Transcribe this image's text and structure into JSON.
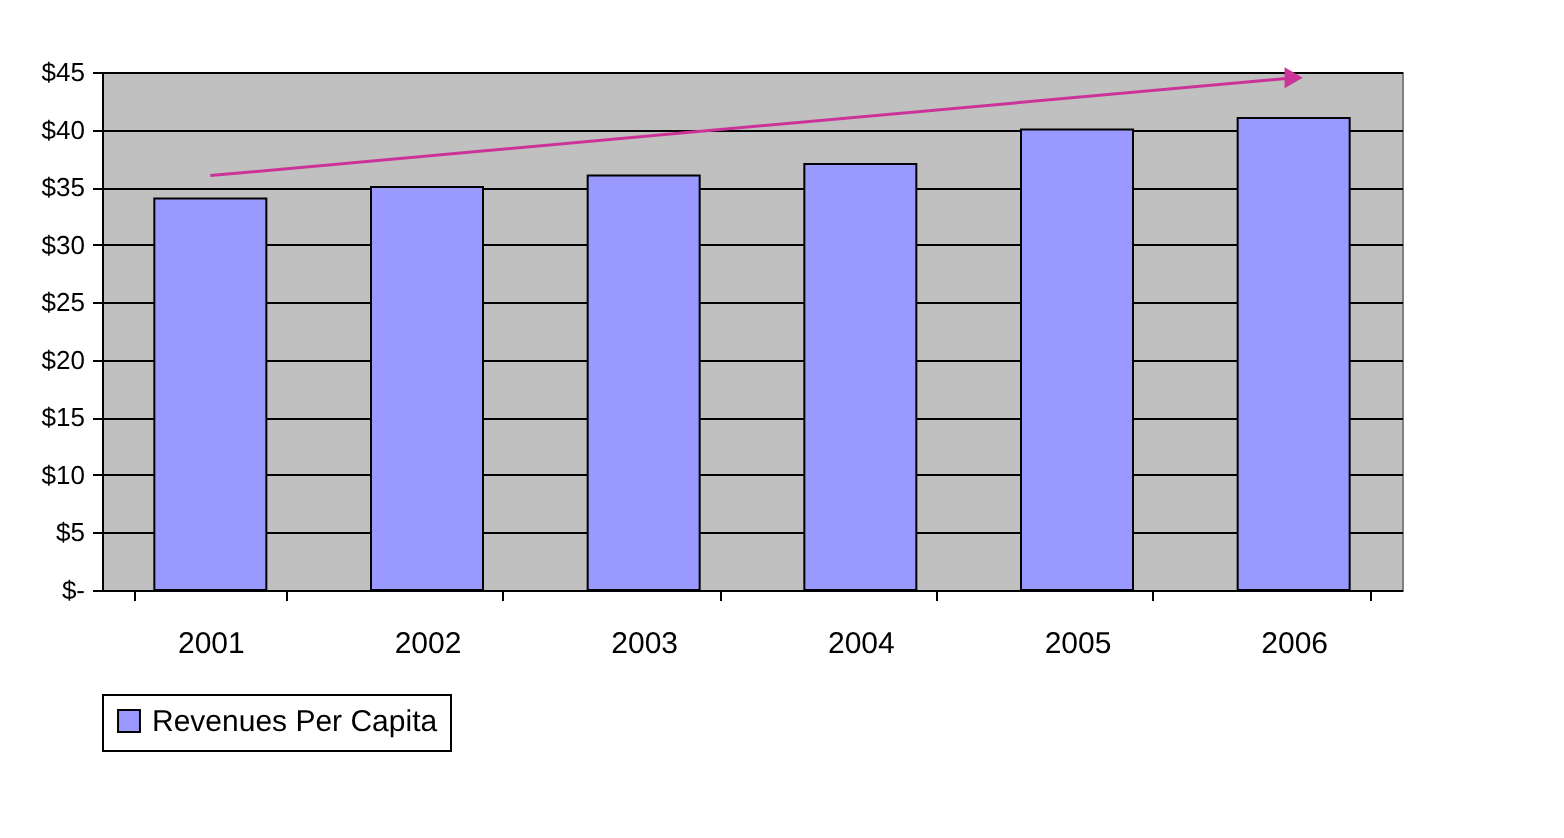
{
  "chart_data": {
    "type": "bar",
    "categories": [
      "2001",
      "2002",
      "2003",
      "2004",
      "2005",
      "2006"
    ],
    "series": [
      {
        "name": "Revenues Per Capita",
        "color": "#9999ff",
        "values": [
          34,
          35,
          36,
          37,
          40,
          41
        ]
      },
      {
        "type": "line",
        "color": "#cc3399",
        "values": [
          36,
          null,
          null,
          null,
          null,
          44.5
        ]
      }
    ],
    "ylim": [
      0,
      45
    ],
    "yticks": [
      {
        "value": 0,
        "label": "$-"
      },
      {
        "value": 5,
        "label": "$5"
      },
      {
        "value": 10,
        "label": "$10"
      },
      {
        "value": 15,
        "label": "$15"
      },
      {
        "value": 20,
        "label": "$20"
      },
      {
        "value": 25,
        "label": "$25"
      },
      {
        "value": 30,
        "label": "$30"
      },
      {
        "value": 35,
        "label": "$35"
      },
      {
        "value": 40,
        "label": "$40"
      },
      {
        "value": 45,
        "label": "$45"
      }
    ],
    "grid": "y",
    "legend": "bottom"
  }
}
